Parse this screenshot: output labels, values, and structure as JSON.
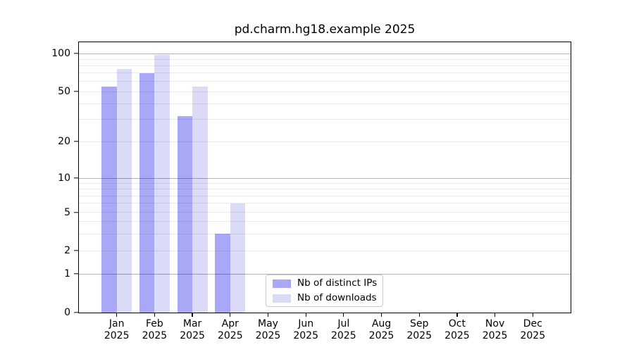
{
  "chart_data": {
    "type": "bar",
    "title": "pd.charm.hg18.example 2025",
    "xlabel": "",
    "ylabel": "",
    "categories": [
      "Jan",
      "Feb",
      "Mar",
      "Apr",
      "May",
      "Jun",
      "Jul",
      "Aug",
      "Sep",
      "Oct",
      "Nov",
      "Dec"
    ],
    "x_year": "2025",
    "series": [
      {
        "name": "Nb of distinct IPs",
        "color": "#a8a8f6",
        "values": [
          55,
          70,
          32,
          3,
          null,
          null,
          null,
          null,
          null,
          null,
          null,
          null
        ]
      },
      {
        "name": "Nb of downloads",
        "color": "#dbdbf7",
        "values": [
          75,
          98,
          55,
          6,
          null,
          null,
          null,
          null,
          null,
          null,
          null,
          null
        ]
      }
    ],
    "y_axis": {
      "scale": "compressed-log (linear 0-1)",
      "ticks": [
        {
          "label": "0",
          "value": 0
        },
        {
          "label": "1",
          "value": 1
        },
        {
          "label": "2",
          "value": 2
        },
        {
          "label": "5",
          "value": 5
        },
        {
          "label": "10",
          "value": 10
        },
        {
          "label": "20",
          "value": 20
        },
        {
          "label": "50",
          "value": 50
        },
        {
          "label": "100",
          "value": 100
        }
      ],
      "major_gridlines": [
        1,
        10,
        100
      ],
      "minor_gridlines": [
        2,
        3,
        4,
        5,
        6,
        7,
        8,
        9,
        20,
        30,
        40,
        50,
        60,
        70,
        80,
        90
      ],
      "anchors": [
        [
          0,
          0.0
        ],
        [
          1,
          0.1432
        ],
        [
          2,
          0.2292
        ],
        [
          5,
          0.3706
        ],
        [
          10,
          0.4974
        ],
        [
          20,
          0.6328
        ],
        [
          50,
          0.8177
        ],
        [
          100,
          0.9583
        ]
      ],
      "y_top_value": 123
    },
    "grid": true,
    "legend": {
      "position": "lower center"
    }
  },
  "colors": {
    "bar_distinct_ips": "#a8a8f6",
    "bar_downloads": "#dbdbf7",
    "grid_major": "#b3b3b3",
    "grid_minor": "#e9e9e9",
    "spine": "#000000",
    "legend_border": "#cbcbcb"
  }
}
